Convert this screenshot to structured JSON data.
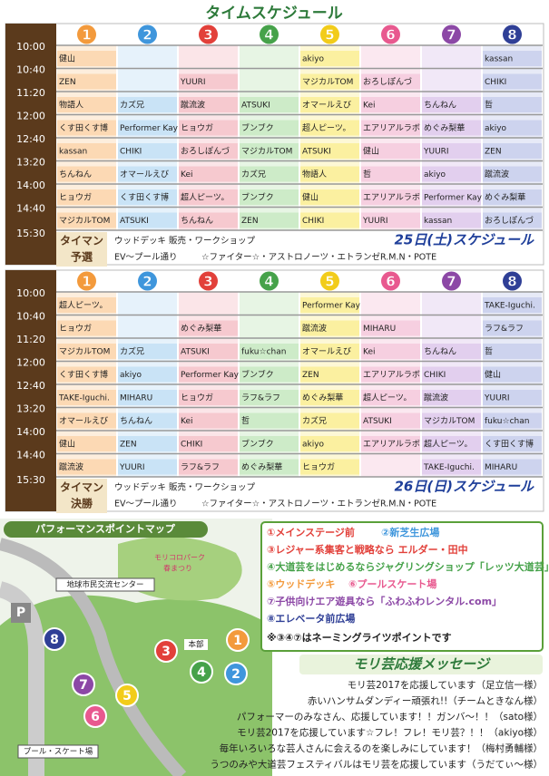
{
  "title": "タイムスケジュール",
  "schedules": [
    {
      "stages": [
        "1",
        "2",
        "3",
        "4",
        "5",
        "6",
        "7",
        "8"
      ],
      "times": [
        "10:00",
        "10:40",
        "11:20",
        "12:00",
        "12:40",
        "13:20",
        "14:00",
        "14:40",
        "15:30"
      ],
      "rows": [
        [
          "健山",
          null,
          null,
          null,
          "akiyo",
          null,
          null,
          "kassan"
        ],
        [
          "ZEN",
          null,
          "YUURI",
          null,
          "マジカルTOM",
          "おろしぽんづ",
          null,
          "CHIKI"
        ],
        [
          "物語人",
          "カズ兄",
          "蹴流波",
          "ATSUKI",
          "オマールえび",
          "Kei",
          "ちんねん",
          "哲"
        ],
        [
          "くす田くす博",
          "Performer Kay",
          "ヒョウガ",
          "ブンブク",
          "超人ピーツ。",
          "エアリアルラボ",
          "めぐみ梨華",
          "akiyo"
        ],
        [
          "kassan",
          "CHIKI",
          "おろしぽんづ",
          "マジカルTOM",
          "ATSUKI",
          "健山",
          "YUURI",
          "ZEN"
        ],
        [
          "ちんねん",
          "オマールえび",
          "Kei",
          "カズ兄",
          "物語人",
          "哲",
          "akiyo",
          "蹴流波"
        ],
        [
          "ヒョウガ",
          "くす田くす博",
          "超人ピーツ。",
          "ブンブク",
          "健山",
          "エアリアルラボ",
          "Performer Kay",
          "めぐみ梨華"
        ],
        [
          "マジカルTOM",
          "ATSUKI",
          "ちんねん",
          "ZEN",
          "CHIKI",
          "YUURI",
          "kassan",
          "おろしぽんづ"
        ]
      ],
      "match": "タイマン",
      "round": "予選",
      "wood_deck": "ウッドデッキ",
      "wood_deck_desc": "販売・ワークショップ",
      "ev": "EV～プール通り",
      "ev_desc": "☆ファイター☆・アストロノーツ・エトランゼR.M.N・POTE",
      "date": "25日(土)スケジュール"
    },
    {
      "stages": [
        "1",
        "2",
        "3",
        "4",
        "5",
        "6",
        "7",
        "8"
      ],
      "times": [
        "10:00",
        "10:40",
        "11:20",
        "12:00",
        "12:40",
        "13:20",
        "14:00",
        "14:40",
        "15:30"
      ],
      "rows": [
        [
          "超人ピーツ。",
          null,
          null,
          null,
          "Performer Kay",
          null,
          null,
          "TAKE-Iguchi."
        ],
        [
          "ヒョウガ",
          null,
          "めぐみ梨華",
          null,
          "蹴流波",
          "MIHARU",
          null,
          "ラフ&ラフ"
        ],
        [
          "マジカルTOM",
          "カズ兄",
          "ATSUKI",
          "fuku☆chan",
          "オマールえび",
          "Kei",
          "ちんねん",
          "哲"
        ],
        [
          "くす田くす博",
          "akiyo",
          "Performer Kay",
          "ブンブク",
          "ZEN",
          "エアリアルラボ",
          "CHIKI",
          "健山"
        ],
        [
          "TAKE-Iguchi.",
          "MIHARU",
          "ヒョウガ",
          "ラフ&ラフ",
          "めぐみ梨華",
          "超人ピーツ。",
          "蹴流波",
          "YUURI"
        ],
        [
          "オマールえび",
          "ちんねん",
          "Kei",
          "哲",
          "カズ兄",
          "ATSUKI",
          "マジカルTOM",
          "fuku☆chan"
        ],
        [
          "健山",
          "ZEN",
          "CHIKI",
          "ブンブク",
          "akiyo",
          "エアリアルラボ",
          "超人ピーツ。",
          "くす田くす博"
        ],
        [
          "蹴流波",
          "YUURI",
          "ラフ&ラフ",
          "めぐみ梨華",
          "ヒョウガ",
          null,
          "TAKE-Iguchi.",
          "MIHARU"
        ]
      ],
      "match": "タイマン",
      "round": "決勝",
      "wood_deck": "ウッドデッキ",
      "wood_deck_desc": "販売・ワークショップ",
      "ev": "EV～プール通り",
      "ev_desc": "☆ファイター☆・アストロノーツ・エトランゼR.M.N・POTE",
      "date": "26日(日)スケジュール"
    }
  ],
  "map": {
    "title": "パフォーマンスポイントマップ",
    "park": [
      "モリコロパーク",
      "春まつり"
    ],
    "center": "地球市民交流センター",
    "parking": "P",
    "hq": "本部",
    "pool": "プール・スケート場",
    "points": [
      "8",
      "3",
      "1",
      "4",
      "2",
      "5",
      "7",
      "6"
    ]
  },
  "legend": {
    "items": [
      "①メインステージ前",
      "②新芝生広場",
      "③レジャー系集客と戦略なら エルダー・田中",
      "④大道芸をはじめるならジャグリングショップ「レッツ大道芸」",
      "⑤ウッドデッキ",
      "⑥プールスケート場",
      "⑦子供向けエア遊具なら「ふわふわレンタル.com」",
      "⑧エレベータ前広場"
    ],
    "note": "※③④⑦はネーミングライツポイントです"
  },
  "messages": {
    "title": "モリ芸応援メッセージ",
    "lines": [
      "モリ芸2017を応援しています（足立信一様）",
      "赤いハンサムダンディー頑張れ!!（チームときなん様）",
      "パフォーマーのみなさん、応援しています！！ガンバ～！！（sato様）",
      "モリ芸2017を応援しています☆フレ！フレ！モリ芸？！！（akiyo様）",
      "毎年いろいろな芸人さんに会えるのを楽しみにしています！（梅村勇輔様）",
      "うつのみや大道芸フェスティバルはモリ芸を応援しています（うだてぃ～様）"
    ]
  }
}
